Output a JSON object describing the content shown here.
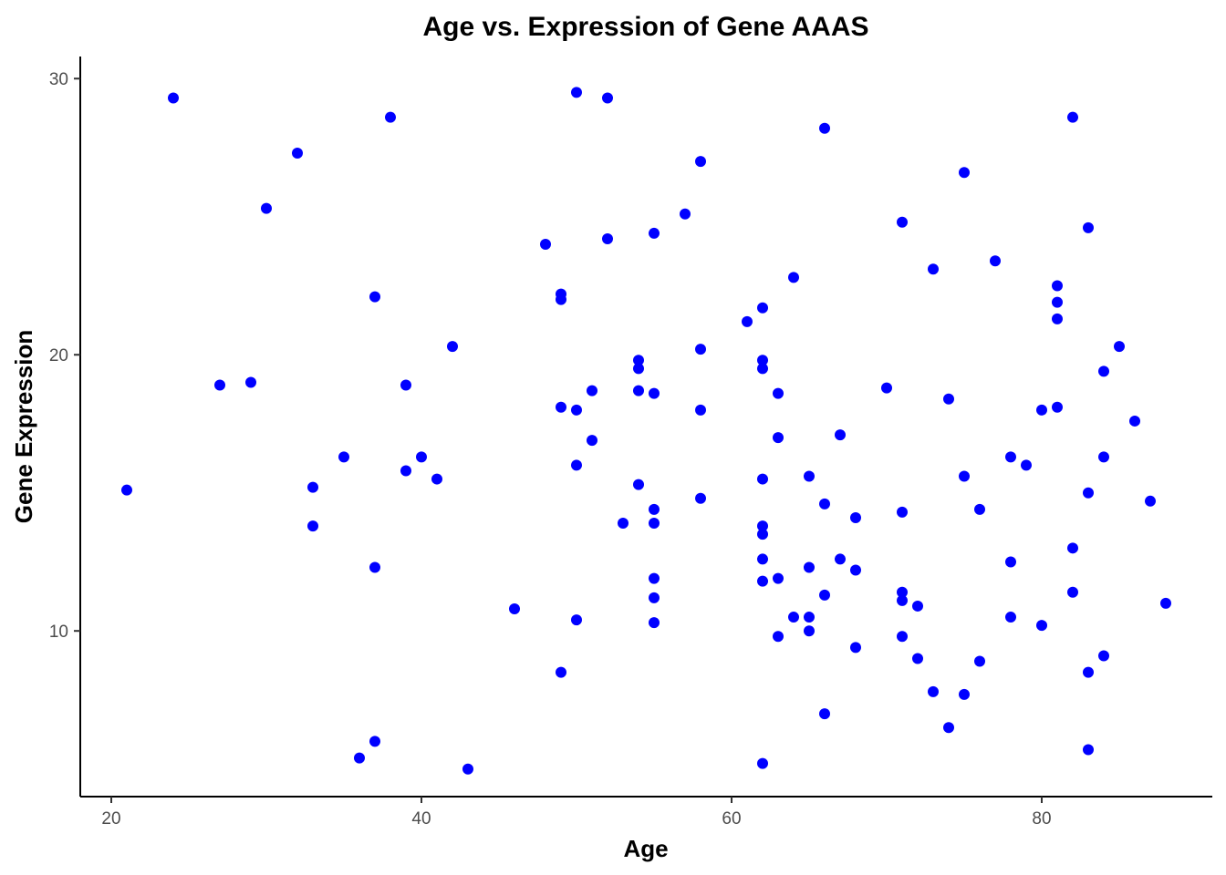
{
  "chart_data": {
    "type": "scatter",
    "title": "Age vs. Expression of Gene AAAS",
    "xlabel": "Age",
    "ylabel": "Gene Expression",
    "xlim": [
      18,
      91
    ],
    "ylim": [
      4.0,
      30.8
    ],
    "xticks": [
      20,
      40,
      60,
      80
    ],
    "yticks": [
      10,
      20,
      30
    ],
    "grid": false,
    "legend": "none",
    "point_color": "#0000FF",
    "points": [
      {
        "x": 21,
        "y": 15.1
      },
      {
        "x": 24,
        "y": 29.3
      },
      {
        "x": 27,
        "y": 18.9
      },
      {
        "x": 29,
        "y": 19.0
      },
      {
        "x": 30,
        "y": 25.3
      },
      {
        "x": 32,
        "y": 27.3
      },
      {
        "x": 33,
        "y": 15.2
      },
      {
        "x": 33,
        "y": 13.8
      },
      {
        "x": 35,
        "y": 16.3
      },
      {
        "x": 36,
        "y": 5.4
      },
      {
        "x": 37,
        "y": 22.1
      },
      {
        "x": 37,
        "y": 12.3
      },
      {
        "x": 37,
        "y": 6.0
      },
      {
        "x": 38,
        "y": 28.6
      },
      {
        "x": 39,
        "y": 15.8
      },
      {
        "x": 39,
        "y": 18.9
      },
      {
        "x": 40,
        "y": 16.3
      },
      {
        "x": 41,
        "y": 15.5
      },
      {
        "x": 42,
        "y": 20.3
      },
      {
        "x": 43,
        "y": 5.0
      },
      {
        "x": 46,
        "y": 10.8
      },
      {
        "x": 48,
        "y": 24.0
      },
      {
        "x": 49,
        "y": 22.2
      },
      {
        "x": 49,
        "y": 22.0
      },
      {
        "x": 49,
        "y": 18.1
      },
      {
        "x": 49,
        "y": 8.5
      },
      {
        "x": 50,
        "y": 29.5
      },
      {
        "x": 50,
        "y": 18.0
      },
      {
        "x": 50,
        "y": 16.0
      },
      {
        "x": 50,
        "y": 10.4
      },
      {
        "x": 51,
        "y": 18.7
      },
      {
        "x": 51,
        "y": 16.9
      },
      {
        "x": 52,
        "y": 29.3
      },
      {
        "x": 52,
        "y": 24.2
      },
      {
        "x": 53,
        "y": 13.9
      },
      {
        "x": 54,
        "y": 19.8
      },
      {
        "x": 54,
        "y": 19.5
      },
      {
        "x": 54,
        "y": 18.7
      },
      {
        "x": 54,
        "y": 15.3
      },
      {
        "x": 55,
        "y": 24.4
      },
      {
        "x": 55,
        "y": 18.6
      },
      {
        "x": 55,
        "y": 14.4
      },
      {
        "x": 55,
        "y": 13.9
      },
      {
        "x": 55,
        "y": 11.9
      },
      {
        "x": 55,
        "y": 11.2
      },
      {
        "x": 55,
        "y": 10.3
      },
      {
        "x": 57,
        "y": 25.1
      },
      {
        "x": 58,
        "y": 27.0
      },
      {
        "x": 58,
        "y": 20.2
      },
      {
        "x": 58,
        "y": 18.0
      },
      {
        "x": 58,
        "y": 14.8
      },
      {
        "x": 61,
        "y": 21.2
      },
      {
        "x": 62,
        "y": 21.7
      },
      {
        "x": 62,
        "y": 19.8
      },
      {
        "x": 62,
        "y": 19.5
      },
      {
        "x": 62,
        "y": 15.5
      },
      {
        "x": 62,
        "y": 13.8
      },
      {
        "x": 62,
        "y": 13.5
      },
      {
        "x": 62,
        "y": 12.6
      },
      {
        "x": 62,
        "y": 11.8
      },
      {
        "x": 62,
        "y": 5.2
      },
      {
        "x": 63,
        "y": 18.6
      },
      {
        "x": 63,
        "y": 17.0
      },
      {
        "x": 63,
        "y": 11.9
      },
      {
        "x": 63,
        "y": 9.8
      },
      {
        "x": 64,
        "y": 22.8
      },
      {
        "x": 64,
        "y": 10.5
      },
      {
        "x": 65,
        "y": 15.6
      },
      {
        "x": 65,
        "y": 12.3
      },
      {
        "x": 65,
        "y": 10.5
      },
      {
        "x": 65,
        "y": 10.0
      },
      {
        "x": 66,
        "y": 28.2
      },
      {
        "x": 66,
        "y": 14.6
      },
      {
        "x": 66,
        "y": 11.3
      },
      {
        "x": 66,
        "y": 7.0
      },
      {
        "x": 67,
        "y": 17.1
      },
      {
        "x": 67,
        "y": 12.6
      },
      {
        "x": 68,
        "y": 14.1
      },
      {
        "x": 68,
        "y": 12.2
      },
      {
        "x": 68,
        "y": 9.4
      },
      {
        "x": 70,
        "y": 18.8
      },
      {
        "x": 71,
        "y": 24.8
      },
      {
        "x": 71,
        "y": 14.3
      },
      {
        "x": 71,
        "y": 11.4
      },
      {
        "x": 71,
        "y": 11.1
      },
      {
        "x": 71,
        "y": 9.8
      },
      {
        "x": 72,
        "y": 10.9
      },
      {
        "x": 72,
        "y": 9.0
      },
      {
        "x": 73,
        "y": 23.1
      },
      {
        "x": 73,
        "y": 7.8
      },
      {
        "x": 74,
        "y": 18.4
      },
      {
        "x": 74,
        "y": 6.5
      },
      {
        "x": 75,
        "y": 26.6
      },
      {
        "x": 75,
        "y": 15.6
      },
      {
        "x": 75,
        "y": 7.7
      },
      {
        "x": 76,
        "y": 14.4
      },
      {
        "x": 76,
        "y": 8.9
      },
      {
        "x": 77,
        "y": 23.4
      },
      {
        "x": 78,
        "y": 16.3
      },
      {
        "x": 78,
        "y": 12.5
      },
      {
        "x": 78,
        "y": 10.5
      },
      {
        "x": 79,
        "y": 16.0
      },
      {
        "x": 80,
        "y": 18.0
      },
      {
        "x": 80,
        "y": 10.2
      },
      {
        "x": 81,
        "y": 22.5
      },
      {
        "x": 81,
        "y": 21.9
      },
      {
        "x": 81,
        "y": 21.3
      },
      {
        "x": 81,
        "y": 18.1
      },
      {
        "x": 82,
        "y": 28.6
      },
      {
        "x": 82,
        "y": 13.0
      },
      {
        "x": 82,
        "y": 11.4
      },
      {
        "x": 83,
        "y": 24.6
      },
      {
        "x": 83,
        "y": 15.0
      },
      {
        "x": 83,
        "y": 8.5
      },
      {
        "x": 83,
        "y": 5.7
      },
      {
        "x": 84,
        "y": 19.4
      },
      {
        "x": 84,
        "y": 16.3
      },
      {
        "x": 84,
        "y": 9.1
      },
      {
        "x": 85,
        "y": 20.3
      },
      {
        "x": 86,
        "y": 17.6
      },
      {
        "x": 87,
        "y": 14.7
      },
      {
        "x": 88,
        "y": 11.0
      }
    ]
  }
}
